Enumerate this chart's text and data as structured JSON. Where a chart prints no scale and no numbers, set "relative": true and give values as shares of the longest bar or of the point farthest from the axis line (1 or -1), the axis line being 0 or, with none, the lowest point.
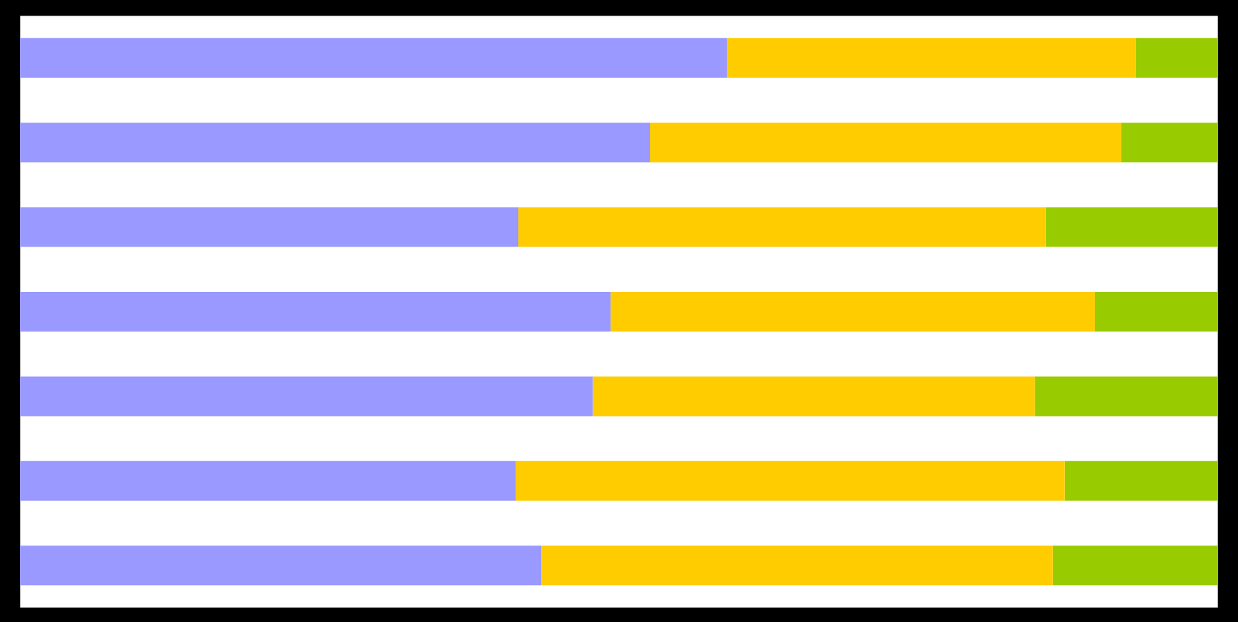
{
  "chart_data": {
    "type": "bar",
    "orientation": "horizontal",
    "stacked": true,
    "relative": true,
    "categories": [
      null,
      null,
      null,
      null,
      null,
      null,
      null
    ],
    "series": [
      {
        "color": "#9999ff",
        "values": [
          0.59,
          0.526,
          0.416,
          0.493,
          0.478,
          0.414,
          0.435
        ]
      },
      {
        "color": "#ffcc00",
        "values": [
          0.341,
          0.393,
          0.44,
          0.404,
          0.369,
          0.458,
          0.427
        ]
      },
      {
        "color": "#99cc00",
        "values": [
          0.069,
          0.081,
          0.144,
          0.103,
          0.153,
          0.128,
          0.138
        ]
      }
    ]
  }
}
